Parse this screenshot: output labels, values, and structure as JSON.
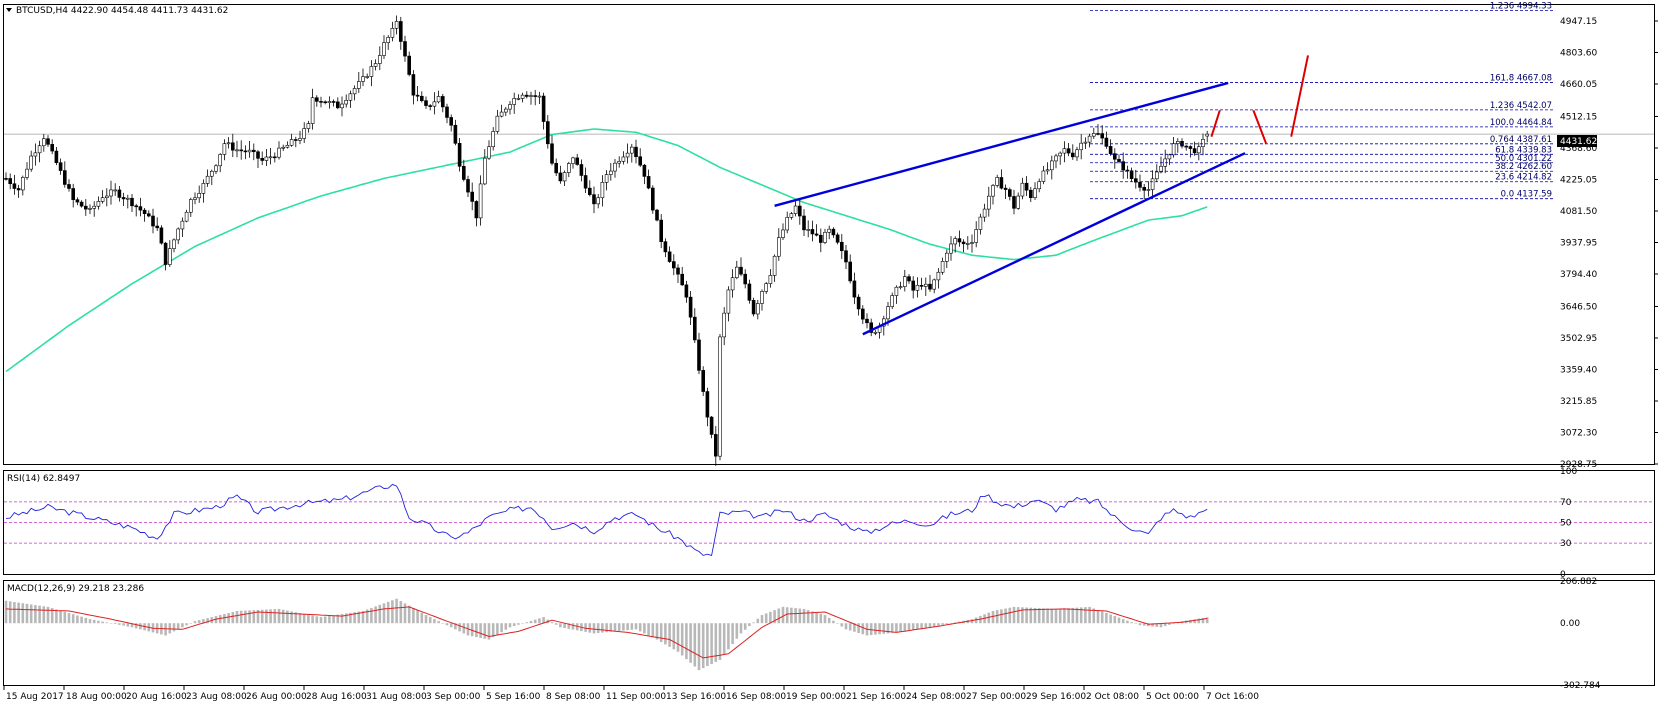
{
  "header": {
    "symbol_line": "BTCUSD,H4  4422.90 4454.48 4411.73 4431.62",
    "rsi_label": "RSI(14) 62.8497",
    "macd_label": "MACD(12,26,9) 29.218 23.286"
  },
  "current_price": "4431.62",
  "chart_data": [
    {
      "type": "candlestick",
      "title": "BTCUSD,H4",
      "ohlc_last": {
        "open": 4422.9,
        "high": 4454.48,
        "low": 4411.73,
        "close": 4431.62
      },
      "ylim": [
        2928.75,
        5020
      ],
      "price_ticks": [
        "4947.15",
        "4803.60",
        "4660.05",
        "4512.15",
        "4368.60",
        "4225.05",
        "4081.50",
        "3937.95",
        "3794.40",
        "3646.50",
        "3502.95",
        "3359.40",
        "3215.85",
        "3072.30",
        "2928.75"
      ],
      "time_ticks": [
        "15 Aug 2017",
        "18 Aug 00:00",
        "20 Aug 16:00",
        "23 Aug 08:00",
        "26 Aug 00:00",
        "28 Aug 16:00",
        "31 Aug 08:00",
        "3 Sep 00:00",
        "5 Sep 16:00",
        "8 Sep 08:00",
        "11 Sep 00:00",
        "13 Sep 16:00",
        "16 Sep 08:00",
        "19 Sep 00:00",
        "21 Sep 16:00",
        "24 Sep 08:00",
        "27 Sep 00:00",
        "29 Sep 16:00",
        "2 Oct 08:00",
        "5 Oct 00:00",
        "7 Oct 16:00"
      ],
      "price_keypoints": [
        [
          0,
          4230
        ],
        [
          3,
          4180
        ],
        [
          6,
          4330
        ],
        [
          9,
          4420
        ],
        [
          12,
          4300
        ],
        [
          16,
          4130
        ],
        [
          20,
          4080
        ],
        [
          23,
          4150
        ],
        [
          26,
          4170
        ],
        [
          30,
          4120
        ],
        [
          33,
          4070
        ],
        [
          36,
          4000
        ],
        [
          38,
          3850
        ],
        [
          41,
          4000
        ],
        [
          44,
          4130
        ],
        [
          47,
          4200
        ],
        [
          50,
          4300
        ],
        [
          52,
          4390
        ],
        [
          55,
          4360
        ],
        [
          58,
          4350
        ],
        [
          61,
          4310
        ],
        [
          64,
          4340
        ],
        [
          67,
          4380
        ],
        [
          70,
          4420
        ],
        [
          72,
          4470
        ],
        [
          73,
          4600
        ],
        [
          76,
          4580
        ],
        [
          79,
          4560
        ],
        [
          82,
          4620
        ],
        [
          85,
          4680
        ],
        [
          88,
          4760
        ],
        [
          90,
          4840
        ],
        [
          92,
          4900
        ],
        [
          93,
          4950
        ],
        [
          95,
          4780
        ],
        [
          97,
          4620
        ],
        [
          100,
          4550
        ],
        [
          103,
          4600
        ],
        [
          106,
          4470
        ],
        [
          108,
          4300
        ],
        [
          110,
          4180
        ],
        [
          112,
          4060
        ],
        [
          114,
          4320
        ],
        [
          117,
          4500
        ],
        [
          120,
          4580
        ],
        [
          123,
          4620
        ],
        [
          125,
          4610
        ],
        [
          127,
          4600
        ],
        [
          128,
          4490
        ],
        [
          130,
          4300
        ],
        [
          132,
          4210
        ],
        [
          135,
          4330
        ],
        [
          138,
          4200
        ],
        [
          140,
          4100
        ],
        [
          143,
          4250
        ],
        [
          146,
          4320
        ],
        [
          149,
          4380
        ],
        [
          152,
          4250
        ],
        [
          154,
          4100
        ],
        [
          156,
          3950
        ],
        [
          159,
          3820
        ],
        [
          162,
          3700
        ],
        [
          164,
          3480
        ],
        [
          166,
          3250
        ],
        [
          168,
          3050
        ],
        [
          169,
          2970
        ],
        [
          170,
          3500
        ],
        [
          172,
          3720
        ],
        [
          174,
          3820
        ],
        [
          176,
          3750
        ],
        [
          178,
          3620
        ],
        [
          180,
          3720
        ],
        [
          182,
          3800
        ],
        [
          184,
          3950
        ],
        [
          186,
          4040
        ],
        [
          188,
          4100
        ],
        [
          190,
          4000
        ],
        [
          192,
          3980
        ],
        [
          194,
          3950
        ],
        [
          196,
          3990
        ],
        [
          198,
          3930
        ],
        [
          200,
          3850
        ],
        [
          202,
          3700
        ],
        [
          204,
          3600
        ],
        [
          206,
          3520
        ],
        [
          208,
          3560
        ],
        [
          210,
          3650
        ],
        [
          212,
          3720
        ],
        [
          214,
          3780
        ],
        [
          216,
          3720
        ],
        [
          218,
          3750
        ],
        [
          220,
          3720
        ],
        [
          222,
          3800
        ],
        [
          224,
          3900
        ],
        [
          226,
          3950
        ],
        [
          228,
          3930
        ],
        [
          230,
          3950
        ],
        [
          232,
          4050
        ],
        [
          234,
          4150
        ],
        [
          236,
          4220
        ],
        [
          238,
          4180
        ],
        [
          240,
          4100
        ],
        [
          242,
          4200
        ],
        [
          244,
          4150
        ],
        [
          246,
          4230
        ],
        [
          248,
          4270
        ],
        [
          250,
          4320
        ],
        [
          252,
          4360
        ],
        [
          254,
          4340
        ],
        [
          256,
          4390
        ],
        [
          258,
          4430
        ],
        [
          260,
          4430
        ],
        [
          262,
          4390
        ],
        [
          264,
          4310
        ],
        [
          266,
          4280
        ],
        [
          268,
          4230
        ],
        [
          270,
          4200
        ],
        [
          272,
          4180
        ],
        [
          274,
          4250
        ],
        [
          276,
          4320
        ],
        [
          278,
          4380
        ],
        [
          280,
          4390
        ],
        [
          282,
          4360
        ],
        [
          284,
          4360
        ],
        [
          286,
          4431.62
        ]
      ],
      "ma_keypoints": [
        [
          0,
          3350
        ],
        [
          15,
          3560
        ],
        [
          30,
          3750
        ],
        [
          45,
          3920
        ],
        [
          60,
          4050
        ],
        [
          75,
          4150
        ],
        [
          90,
          4230
        ],
        [
          100,
          4270
        ],
        [
          110,
          4310
        ],
        [
          120,
          4350
        ],
        [
          130,
          4430
        ],
        [
          140,
          4455
        ],
        [
          150,
          4440
        ],
        [
          160,
          4380
        ],
        [
          170,
          4280
        ],
        [
          180,
          4200
        ],
        [
          190,
          4120
        ],
        [
          200,
          4060
        ],
        [
          210,
          4000
        ],
        [
          220,
          3930
        ],
        [
          230,
          3880
        ],
        [
          240,
          3860
        ],
        [
          250,
          3880
        ],
        [
          258,
          3940
        ],
        [
          265,
          3990
        ],
        [
          272,
          4040
        ],
        [
          280,
          4060
        ],
        [
          286,
          4100
        ]
      ],
      "fib_levels": [
        {
          "label": "1.236  4994.33",
          "price": 4994.33
        },
        {
          "label": "161.8  4667.08",
          "price": 4667.08
        },
        {
          "label": "1.236  4542.07",
          "price": 4542.07
        },
        {
          "label": "100.0  4464.84",
          "price": 4464.84
        },
        {
          "label": "0.764  4387.61",
          "price": 4387.61
        },
        {
          "label": "61.8  4339.83",
          "price": 4339.83
        },
        {
          "label": "50.0  4301.22",
          "price": 4301.22
        },
        {
          "label": "38.2  4262.60",
          "price": 4262.6
        },
        {
          "label": "23.6  4214.82",
          "price": 4214.82
        },
        {
          "label": "0.0  4137.59",
          "price": 4137.59
        }
      ],
      "trend_lines": [
        {
          "color": "#0000dd",
          "from": [
            183,
            4105
          ],
          "to": [
            291,
            4665
          ]
        },
        {
          "color": "#0000dd",
          "from": [
            204,
            3520
          ],
          "to": [
            295,
            4345
          ]
        }
      ],
      "arrows": [
        {
          "color": "#dd0000",
          "from": [
            287,
            4420
          ],
          "to": [
            289,
            4540
          ]
        },
        {
          "color": "#dd0000",
          "from": [
            297,
            4540
          ],
          "to": [
            300,
            4390
          ]
        },
        {
          "color": "#dd0000",
          "from": [
            306,
            4420
          ],
          "to": [
            310,
            4790
          ]
        }
      ]
    },
    {
      "type": "line",
      "title": "RSI(14) 62.8497",
      "ylim": [
        0,
        100
      ],
      "y_ticks": [
        "100",
        "70",
        "50",
        "30",
        "0"
      ],
      "levels": [
        70,
        50,
        30
      ],
      "rsi_keypoints": [
        [
          0,
          55
        ],
        [
          10,
          65
        ],
        [
          20,
          55
        ],
        [
          30,
          45
        ],
        [
          36,
          35
        ],
        [
          40,
          58
        ],
        [
          50,
          65
        ],
        [
          55,
          75
        ],
        [
          60,
          60
        ],
        [
          70,
          68
        ],
        [
          80,
          72
        ],
        [
          90,
          85
        ],
        [
          93,
          87
        ],
        [
          96,
          55
        ],
        [
          100,
          48
        ],
        [
          106,
          35
        ],
        [
          110,
          40
        ],
        [
          115,
          55
        ],
        [
          120,
          62
        ],
        [
          125,
          65
        ],
        [
          128,
          55
        ],
        [
          130,
          45
        ],
        [
          135,
          50
        ],
        [
          140,
          42
        ],
        [
          145,
          55
        ],
        [
          150,
          58
        ],
        [
          155,
          45
        ],
        [
          160,
          35
        ],
        [
          165,
          20
        ],
        [
          168,
          18
        ],
        [
          170,
          58
        ],
        [
          175,
          60
        ],
        [
          180,
          55
        ],
        [
          185,
          62
        ],
        [
          190,
          52
        ],
        [
          195,
          58
        ],
        [
          200,
          48
        ],
        [
          205,
          40
        ],
        [
          210,
          48
        ],
        [
          215,
          52
        ],
        [
          220,
          48
        ],
        [
          225,
          58
        ],
        [
          230,
          62
        ],
        [
          233,
          78
        ],
        [
          236,
          70
        ],
        [
          240,
          65
        ],
        [
          245,
          72
        ],
        [
          250,
          63
        ],
        [
          255,
          72
        ],
        [
          260,
          70
        ],
        [
          264,
          55
        ],
        [
          268,
          45
        ],
        [
          272,
          38
        ],
        [
          275,
          55
        ],
        [
          278,
          62
        ],
        [
          282,
          55
        ],
        [
          286,
          62.85
        ]
      ]
    },
    {
      "type": "bar",
      "title": "MACD(12,26,9) 29.218 23.286",
      "ylim": [
        -302.784,
        206.882
      ],
      "y_ticks": [
        "206.882",
        "0.00",
        "-302.784"
      ],
      "macd_keypoints": [
        [
          0,
          110
        ],
        [
          10,
          80
        ],
        [
          20,
          20
        ],
        [
          30,
          -20
        ],
        [
          38,
          -60
        ],
        [
          45,
          10
        ],
        [
          55,
          60
        ],
        [
          65,
          70
        ],
        [
          75,
          30
        ],
        [
          85,
          60
        ],
        [
          93,
          120
        ],
        [
          100,
          40
        ],
        [
          110,
          -60
        ],
        [
          115,
          -80
        ],
        [
          120,
          -20
        ],
        [
          128,
          30
        ],
        [
          132,
          -20
        ],
        [
          140,
          -50
        ],
        [
          150,
          -30
        ],
        [
          155,
          -80
        ],
        [
          160,
          -140
        ],
        [
          165,
          -230
        ],
        [
          170,
          -180
        ],
        [
          175,
          -50
        ],
        [
          180,
          40
        ],
        [
          185,
          80
        ],
        [
          190,
          70
        ],
        [
          195,
          40
        ],
        [
          200,
          -30
        ],
        [
          205,
          -60
        ],
        [
          210,
          -50
        ],
        [
          220,
          -20
        ],
        [
          230,
          20
        ],
        [
          235,
          60
        ],
        [
          240,
          80
        ],
        [
          250,
          70
        ],
        [
          258,
          80
        ],
        [
          262,
          50
        ],
        [
          270,
          -10
        ],
        [
          275,
          -20
        ],
        [
          280,
          10
        ],
        [
          286,
          29
        ]
      ],
      "signal_keypoints": [
        [
          0,
          70
        ],
        [
          15,
          60
        ],
        [
          25,
          20
        ],
        [
          35,
          -25
        ],
        [
          42,
          -30
        ],
        [
          50,
          20
        ],
        [
          60,
          55
        ],
        [
          70,
          45
        ],
        [
          80,
          35
        ],
        [
          90,
          70
        ],
        [
          96,
          80
        ],
        [
          105,
          10
        ],
        [
          115,
          -65
        ],
        [
          122,
          -40
        ],
        [
          130,
          15
        ],
        [
          138,
          -25
        ],
        [
          148,
          -45
        ],
        [
          158,
          -80
        ],
        [
          166,
          -170
        ],
        [
          172,
          -150
        ],
        [
          180,
          -20
        ],
        [
          186,
          45
        ],
        [
          195,
          55
        ],
        [
          205,
          -30
        ],
        [
          212,
          -45
        ],
        [
          222,
          -15
        ],
        [
          232,
          20
        ],
        [
          242,
          65
        ],
        [
          252,
          70
        ],
        [
          262,
          60
        ],
        [
          272,
          -5
        ],
        [
          280,
          5
        ],
        [
          286,
          23
        ]
      ]
    }
  ]
}
